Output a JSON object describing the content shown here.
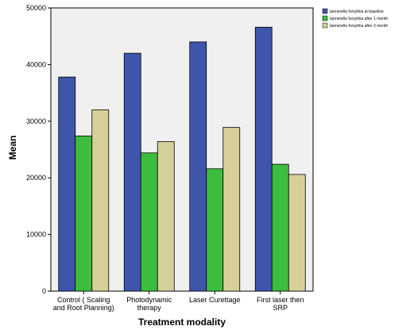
{
  "chart_data": {
    "type": "bar",
    "title": "",
    "xlabel": "Treatment modality",
    "ylabel": "Mean",
    "ylim": [
      0,
      50000
    ],
    "yticks": [
      0,
      10000,
      20000,
      30000,
      40000,
      50000
    ],
    "grid": false,
    "legend_position": "top-right",
    "categories": [
      [
        "Control ( Scaling",
        "and Root Planning)"
      ],
      [
        "Photodynamic",
        "therapy"
      ],
      [
        "Laser Curettage"
      ],
      [
        "First laser then",
        "SRP"
      ]
    ],
    "series": [
      {
        "name": "tannerella forsythia at baseline",
        "color": "#3e55ab",
        "values": [
          37800,
          42000,
          44000,
          46600
        ]
      },
      {
        "name": "tannerella forsythia after 1 month",
        "color": "#3dbd3d",
        "values": [
          27400,
          24400,
          21600,
          22400
        ]
      },
      {
        "name": "tannerella forsythia after 3 month",
        "color": "#d6cf98",
        "values": [
          32000,
          26400,
          28900,
          20600
        ]
      }
    ],
    "plot_background": "#f0f0f0"
  }
}
